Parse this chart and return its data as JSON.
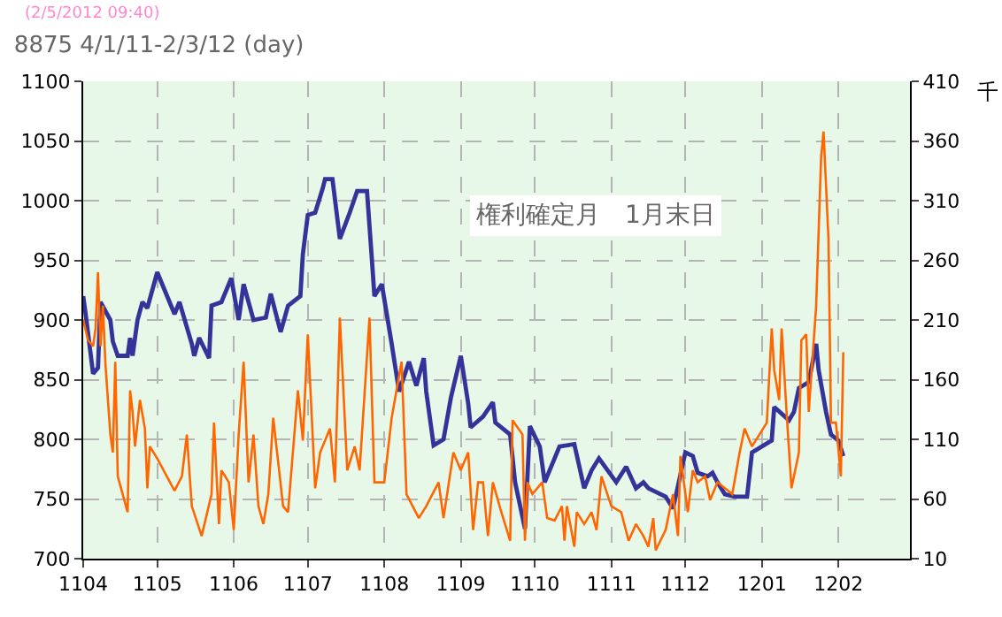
{
  "chart_data": {
    "type": "line",
    "title": "8875 4/1/11-2/3/12 (day)",
    "y2label": "千",
    "annotations": [
      "(2/5/2012 09:40)",
      "権利確定月　1月末日"
    ],
    "xlim": [
      "2011-04-01",
      "2012-03-01"
    ],
    "xticks": [
      {
        "value": "2011-04-01",
        "label": "1104"
      },
      {
        "value": "2011-05-01",
        "label": "1105"
      },
      {
        "value": "2011-06-01",
        "label": "1106"
      },
      {
        "value": "2011-07-01",
        "label": "1107"
      },
      {
        "value": "2011-08-01",
        "label": "1108"
      },
      {
        "value": "2011-09-01",
        "label": "1109"
      },
      {
        "value": "2011-10-01",
        "label": "1110"
      },
      {
        "value": "2011-11-01",
        "label": "1111"
      },
      {
        "value": "2011-12-01",
        "label": "1112"
      },
      {
        "value": "2012-01-01",
        "label": "1201"
      },
      {
        "value": "2012-02-01",
        "label": "1202"
      }
    ],
    "ylim": [
      700,
      1100
    ],
    "yticks": [
      700,
      750,
      800,
      850,
      900,
      950,
      1000,
      1050,
      1100
    ],
    "y2lim": [
      10,
      410
    ],
    "y2ticks": [
      10,
      60,
      110,
      160,
      210,
      260,
      310,
      360,
      410
    ],
    "grid": true,
    "marker": "none",
    "line_style": "solid",
    "series": [
      {
        "color": "#ff6600",
        "axis": "y2",
        "x": [
          "2011-04-01",
          "2011-04-03",
          "2011-04-05",
          "2011-04-06",
          "2011-04-07",
          "2011-04-08",
          "2011-04-09",
          "2011-04-10",
          "2011-04-12",
          "2011-04-13",
          "2011-04-14",
          "2011-04-15",
          "2011-04-17",
          "2011-04-19",
          "2011-04-20",
          "2011-04-21",
          "2011-04-22",
          "2011-04-24",
          "2011-04-26",
          "2011-04-27",
          "2011-04-28",
          "2011-05-01",
          "2011-05-08",
          "2011-05-11",
          "2011-05-13",
          "2011-05-15",
          "2011-05-19",
          "2011-05-23",
          "2011-05-24",
          "2011-05-26",
          "2011-05-27",
          "2011-05-30",
          "2011-06-01",
          "2011-06-03",
          "2011-06-05",
          "2011-06-07",
          "2011-06-09",
          "2011-06-11",
          "2011-06-13",
          "2011-06-15",
          "2011-06-17",
          "2011-06-21",
          "2011-06-23",
          "2011-06-27",
          "2011-06-29",
          "2011-07-01",
          "2011-07-04",
          "2011-07-06",
          "2011-07-10",
          "2011-07-12",
          "2011-07-14",
          "2011-07-17",
          "2011-07-20",
          "2011-07-22",
          "2011-07-26",
          "2011-07-28",
          "2011-08-01",
          "2011-08-04",
          "2011-08-08",
          "2011-08-10",
          "2011-08-15",
          "2011-08-18",
          "2011-08-23",
          "2011-08-25",
          "2011-08-29",
          "2011-09-01",
          "2011-09-04",
          "2011-09-06",
          "2011-09-08",
          "2011-09-10",
          "2011-09-12",
          "2011-09-14",
          "2011-09-17",
          "2011-09-21",
          "2011-09-22",
          "2011-09-26",
          "2011-09-27",
          "2011-09-28",
          "2011-09-30",
          "2011-10-04",
          "2011-10-06",
          "2011-10-09",
          "2011-10-12",
          "2011-10-13",
          "2011-10-14",
          "2011-10-17",
          "2011-10-18",
          "2011-10-21",
          "2011-10-24",
          "2011-10-26",
          "2011-10-28",
          "2011-11-01",
          "2011-11-05",
          "2011-11-08",
          "2011-11-11",
          "2011-11-14",
          "2011-11-16",
          "2011-11-18",
          "2011-11-19",
          "2011-11-23",
          "2011-11-26",
          "2011-11-28",
          "2011-11-29",
          "2011-12-02",
          "2011-12-04",
          "2011-12-06",
          "2011-12-09",
          "2011-12-11",
          "2011-12-14",
          "2011-12-17",
          "2011-12-20",
          "2011-12-23",
          "2011-12-25",
          "2011-12-28",
          "2012-01-03",
          "2012-01-05",
          "2012-01-06",
          "2012-01-08",
          "2012-01-09",
          "2012-01-11",
          "2012-01-13",
          "2012-01-16",
          "2012-01-17",
          "2012-01-19",
          "2012-01-20",
          "2012-01-23",
          "2012-01-25",
          "2012-01-26",
          "2012-01-28",
          "2012-01-29",
          "2012-01-31",
          "2012-02-02",
          "2012-02-03"
        ],
        "values": [
          210,
          193,
          188,
          203,
          250,
          188,
          222,
          173,
          114,
          99,
          175,
          79,
          64,
          49,
          151,
          133,
          104,
          143,
          119,
          69,
          104,
          94,
          67,
          79,
          114,
          54,
          29,
          64,
          124,
          39,
          84,
          74,
          34,
          114,
          175,
          74,
          114,
          54,
          39,
          64,
          128,
          54,
          49,
          151,
          109,
          198,
          69,
          99,
          119,
          74,
          212,
          84,
          104,
          84,
          212,
          74,
          74,
          128,
          175,
          64,
          44,
          54,
          74,
          44,
          99,
          84,
          99,
          34,
          74,
          74,
          29,
          74,
          52,
          25,
          126,
          114,
          25,
          74,
          64,
          74,
          44,
          42,
          54,
          25,
          54,
          20,
          49,
          39,
          49,
          34,
          79,
          54,
          49,
          25,
          39,
          29,
          20,
          44,
          17,
          34,
          64,
          29,
          96,
          49,
          84,
          74,
          79,
          59,
          74,
          69,
          64,
          99,
          119,
          104,
          124,
          203,
          168,
          143,
          203,
          133,
          69,
          99,
          193,
          198,
          133,
          222,
          346,
          368,
          277,
          124,
          124,
          79,
          183
        ]
      },
      {
        "color": "#333399",
        "x": [
          "2011-04-01",
          "2011-04-02",
          "2011-04-05",
          "2011-04-07",
          "2011-04-08",
          "2011-04-12",
          "2011-04-13",
          "2011-04-15",
          "2011-04-19",
          "2011-04-20",
          "2011-04-21",
          "2011-04-23",
          "2011-04-25",
          "2011-04-27",
          "2011-05-01",
          "2011-05-05",
          "2011-05-08",
          "2011-05-10",
          "2011-05-15",
          "2011-05-16",
          "2011-05-18",
          "2011-05-22",
          "2011-05-23",
          "2011-05-27",
          "2011-05-31",
          "2011-06-03",
          "2011-06-05",
          "2011-06-09",
          "2011-06-14",
          "2011-06-16",
          "2011-06-20",
          "2011-06-23",
          "2011-06-28",
          "2011-06-29",
          "2011-07-01",
          "2011-07-04",
          "2011-07-07",
          "2011-07-08",
          "2011-07-11",
          "2011-07-14",
          "2011-07-18",
          "2011-07-21",
          "2011-07-25",
          "2011-07-27",
          "2011-07-28",
          "2011-07-31",
          "2011-08-04",
          "2011-08-07",
          "2011-08-11",
          "2011-08-14",
          "2011-08-17",
          "2011-08-18",
          "2011-08-21",
          "2011-08-25",
          "2011-08-28",
          "2011-09-01",
          "2011-09-04",
          "2011-09-05",
          "2011-09-10",
          "2011-09-13",
          "2011-09-14",
          "2011-09-15",
          "2011-09-21",
          "2011-09-23",
          "2011-09-26",
          "2011-09-27",
          "2011-09-29",
          "2011-10-03",
          "2011-10-05",
          "2011-10-07",
          "2011-10-11",
          "2011-10-17",
          "2011-10-21",
          "2011-10-24",
          "2011-10-27",
          "2011-11-03",
          "2011-11-07",
          "2011-11-11",
          "2011-11-14",
          "2011-11-16",
          "2011-11-23",
          "2011-11-26",
          "2011-12-01",
          "2011-12-04",
          "2011-12-06",
          "2011-12-10",
          "2011-12-12",
          "2011-12-14",
          "2011-12-17",
          "2011-12-21",
          "2011-12-26",
          "2011-12-28",
          "2012-01-05",
          "2012-01-06",
          "2012-01-12",
          "2012-01-14",
          "2012-01-16",
          "2012-01-20",
          "2012-01-23",
          "2012-01-24",
          "2012-01-27",
          "2012-01-29",
          "2012-02-01",
          "2012-02-03"
        ],
        "values": [
          920,
          905,
          855,
          860,
          915,
          900,
          882,
          870,
          870,
          885,
          870,
          900,
          915,
          910,
          940,
          920,
          905,
          915,
          880,
          870,
          885,
          868,
          912,
          915,
          935,
          900,
          930,
          900,
          902,
          922,
          890,
          912,
          920,
          955,
          988,
          990,
          1010,
          1018,
          1018,
          968,
          990,
          1008,
          1008,
          950,
          920,
          930,
          880,
          840,
          865,
          845,
          868,
          840,
          795,
          800,
          835,
          870,
          830,
          810,
          819,
          828,
          831,
          814,
          804,
          764,
          735,
          725,
          811,
          794,
          764,
          774,
          794,
          796,
          759,
          774,
          784,
          764,
          777,
          759,
          764,
          759,
          752,
          742,
          789,
          786,
          772,
          769,
          772,
          764,
          754,
          752,
          752,
          789,
          799,
          827,
          816,
          823,
          843,
          848,
          880,
          858,
          823,
          804,
          799,
          786
        ]
      }
    ]
  }
}
